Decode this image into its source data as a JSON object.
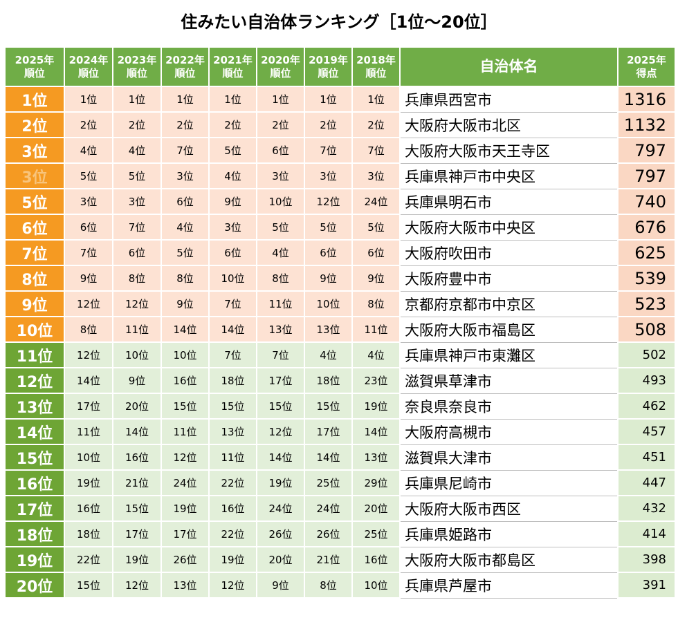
{
  "title": "住みたい自治体ランキング［1位～20位］",
  "colors": {
    "header_green": "#70ad47",
    "top10_rank": "#f59a22",
    "top10_cell": "#fde2d3",
    "rest_rank": "#6ea535",
    "rest_cell": "#e2efd9"
  },
  "headers": {
    "rank2025": [
      "2025年",
      "順位"
    ],
    "years": [
      [
        "2024年",
        "順位"
      ],
      [
        "2023年",
        "順位"
      ],
      [
        "2022年",
        "順位"
      ],
      [
        "2021年",
        "順位"
      ],
      [
        "2020年",
        "順位"
      ],
      [
        "2019年",
        "順位"
      ],
      [
        "2018年",
        "順位"
      ]
    ],
    "name": "自治体名",
    "score2025": [
      "2025年",
      "得点"
    ]
  },
  "rows": [
    {
      "rank": "1位",
      "hist": [
        "1位",
        "1位",
        "1位",
        "1位",
        "1位",
        "1位",
        "1位"
      ],
      "name": "兵庫県西宮市",
      "score": "1316"
    },
    {
      "rank": "2位",
      "hist": [
        "2位",
        "2位",
        "2位",
        "2位",
        "2位",
        "2位",
        "2位"
      ],
      "name": "大阪府大阪市北区",
      "score": "1132"
    },
    {
      "rank": "3位",
      "hist": [
        "4位",
        "4位",
        "7位",
        "5位",
        "6位",
        "7位",
        "7位"
      ],
      "name": "大阪府大阪市天王寺区",
      "score": "797"
    },
    {
      "rank": "3位",
      "hist": [
        "5位",
        "5位",
        "3位",
        "4位",
        "3位",
        "3位",
        "3位"
      ],
      "name": "兵庫県神戸市中央区",
      "score": "797"
    },
    {
      "rank": "5位",
      "hist": [
        "3位",
        "3位",
        "6位",
        "9位",
        "10位",
        "12位",
        "24位"
      ],
      "name": "兵庫県明石市",
      "score": "740"
    },
    {
      "rank": "6位",
      "hist": [
        "6位",
        "7位",
        "4位",
        "3位",
        "5位",
        "5位",
        "5位"
      ],
      "name": "大阪府大阪市中央区",
      "score": "676"
    },
    {
      "rank": "7位",
      "hist": [
        "7位",
        "6位",
        "5位",
        "6位",
        "4位",
        "6位",
        "6位"
      ],
      "name": "大阪府吹田市",
      "score": "625"
    },
    {
      "rank": "8位",
      "hist": [
        "9位",
        "8位",
        "8位",
        "10位",
        "8位",
        "9位",
        "9位"
      ],
      "name": "大阪府豊中市",
      "score": "539"
    },
    {
      "rank": "9位",
      "hist": [
        "12位",
        "12位",
        "9位",
        "7位",
        "11位",
        "10位",
        "8位"
      ],
      "name": "京都府京都市中京区",
      "score": "523"
    },
    {
      "rank": "10位",
      "hist": [
        "8位",
        "11位",
        "14位",
        "14位",
        "13位",
        "13位",
        "11位"
      ],
      "name": "大阪府大阪市福島区",
      "score": "508"
    },
    {
      "rank": "11位",
      "hist": [
        "12位",
        "10位",
        "10位",
        "7位",
        "7位",
        "4位",
        "4位"
      ],
      "name": "兵庫県神戸市東灘区",
      "score": "502"
    },
    {
      "rank": "12位",
      "hist": [
        "14位",
        "9位",
        "16位",
        "18位",
        "17位",
        "18位",
        "23位"
      ],
      "name": "滋賀県草津市",
      "score": "493"
    },
    {
      "rank": "13位",
      "hist": [
        "17位",
        "20位",
        "15位",
        "15位",
        "15位",
        "15位",
        "19位"
      ],
      "name": "奈良県奈良市",
      "score": "462"
    },
    {
      "rank": "14位",
      "hist": [
        "11位",
        "14位",
        "11位",
        "13位",
        "12位",
        "17位",
        "14位"
      ],
      "name": "大阪府高槻市",
      "score": "457"
    },
    {
      "rank": "15位",
      "hist": [
        "10位",
        "16位",
        "12位",
        "11位",
        "14位",
        "14位",
        "13位"
      ],
      "name": "滋賀県大津市",
      "score": "451"
    },
    {
      "rank": "16位",
      "hist": [
        "19位",
        "21位",
        "24位",
        "22位",
        "19位",
        "25位",
        "29位"
      ],
      "name": "兵庫県尼崎市",
      "score": "447"
    },
    {
      "rank": "17位",
      "hist": [
        "16位",
        "15位",
        "19位",
        "16位",
        "24位",
        "24位",
        "20位"
      ],
      "name": "大阪府大阪市西区",
      "score": "432"
    },
    {
      "rank": "18位",
      "hist": [
        "18位",
        "17位",
        "17位",
        "22位",
        "26位",
        "26位",
        "25位"
      ],
      "name": "兵庫県姫路市",
      "score": "414"
    },
    {
      "rank": "19位",
      "hist": [
        "22位",
        "19位",
        "26位",
        "19位",
        "20位",
        "21位",
        "16位"
      ],
      "name": "大阪府大阪市都島区",
      "score": "398"
    },
    {
      "rank": "20位",
      "hist": [
        "15位",
        "12位",
        "13位",
        "12位",
        "9位",
        "8位",
        "10位"
      ],
      "name": "兵庫県芦屋市",
      "score": "391"
    }
  ]
}
